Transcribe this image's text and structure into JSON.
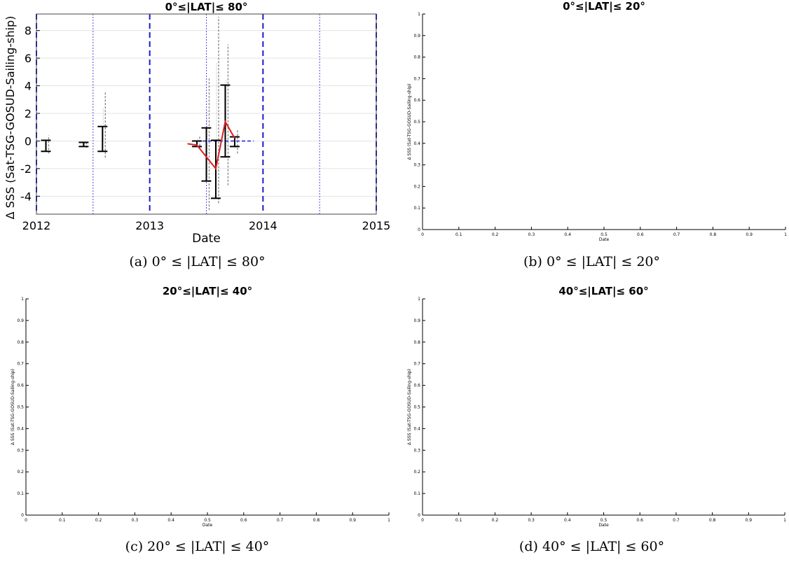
{
  "panels": [
    {
      "id": "a",
      "caption": "(a) 0° ≤ |LAT| ≤ 80°",
      "chart_data": {
        "type": "line",
        "title": "0°≤|LAT|≤ 80°",
        "xlabel": "Date",
        "ylabel": "Δ SSS (Sat-TSG-GOSUD-Sailing-ship)",
        "xlim": [
          "2012-01",
          "2015-01"
        ],
        "ylim": [
          -5.3,
          9.2
        ],
        "x_ticks": [
          "2012",
          "2013",
          "2014",
          "2015"
        ],
        "y_ticks": [
          -4,
          -2,
          0,
          2,
          4,
          6,
          8
        ],
        "grid": true,
        "year_lines": [
          "2012-01",
          "2013-01",
          "2014-01",
          "2015-01"
        ],
        "half_year_lines": [
          "2012-07",
          "2013-07",
          "2014-07"
        ],
        "zero_line": {
          "x_range": [
            "2013-06",
            "2013-12"
          ],
          "y": 0,
          "color": "#1a1adc"
        },
        "error_bars": [
          {
            "x": "2012-02",
            "mean": -0.35,
            "low": -0.75,
            "high": 0.05
          },
          {
            "x": "2012-06",
            "mean": -0.25,
            "low": -0.4,
            "high": -0.1
          },
          {
            "x": "2012-08",
            "mean": 0.1,
            "low": -0.75,
            "high": 1.05
          },
          {
            "x": "2013-06",
            "mean": -0.15,
            "low": -0.4,
            "high": 0.0
          },
          {
            "x": "2013-07",
            "mean": -0.9,
            "low": -2.9,
            "high": 0.95
          },
          {
            "x": "2013-08",
            "mean": -2.0,
            "low": -4.15,
            "high": 0.05
          },
          {
            "x": "2013-09",
            "mean": 1.4,
            "low": -1.15,
            "high": 4.05
          },
          {
            "x": "2013-10",
            "mean": 0.1,
            "low": -0.4,
            "high": 0.3
          }
        ],
        "scatter_spreads": [
          {
            "x": "2012-02",
            "low": -0.9,
            "high": 0.4
          },
          {
            "x": "2012-06",
            "low": -0.5,
            "high": 0.0
          },
          {
            "x": "2012-08",
            "low": -1.2,
            "high": 3.6
          },
          {
            "x": "2013-06",
            "low": -0.6,
            "high": 0.4
          },
          {
            "x": "2013-07",
            "low": -5.0,
            "high": 4.6
          },
          {
            "x": "2013-08",
            "low": -4.5,
            "high": 9.0
          },
          {
            "x": "2013-09",
            "low": -3.2,
            "high": 7.0
          },
          {
            "x": "2013-10",
            "low": -0.9,
            "high": 0.8
          }
        ],
        "mean_line": {
          "color": "#e02020",
          "points": [
            {
              "x": "2013-05",
              "y": -0.2
            },
            {
              "x": "2013-06",
              "y": -0.3
            },
            {
              "x": "2013-08",
              "y": -2.0
            },
            {
              "x": "2013-09",
              "y": 1.4
            },
            {
              "x": "2013-10",
              "y": 0.2
            }
          ]
        }
      }
    },
    {
      "id": "b",
      "caption": "(b) 0° ≤ |LAT| ≤ 20°",
      "chart_data": {
        "type": "line",
        "title": "0°≤|LAT|≤ 20°",
        "xlabel": "Date",
        "ylabel": "Δ SSS (Sat-TSG-GOSUD-Sailing-ship)",
        "xlim": [
          0,
          1
        ],
        "ylim": [
          0,
          1
        ],
        "x_ticks": [
          "0",
          "0.1",
          "0.2",
          "0.3",
          "0.4",
          "0.5",
          "0.6",
          "0.7",
          "0.8",
          "0.9",
          "1"
        ],
        "y_ticks": [
          "0",
          "0.1",
          "0.2",
          "0.3",
          "0.4",
          "0.5",
          "0.6",
          "0.7",
          "0.8",
          "0.9",
          "1"
        ],
        "series": []
      }
    },
    {
      "id": "c",
      "caption": "(c) 20° ≤ |LAT| ≤ 40°",
      "chart_data": {
        "type": "line",
        "title": "20°≤|LAT|≤ 40°",
        "xlabel": "Date",
        "ylabel": "Δ SSS (Sat-TSG-GOSUD-Sailing-ship)",
        "xlim": [
          0,
          1
        ],
        "ylim": [
          0,
          1
        ],
        "x_ticks": [
          "0",
          "0.1",
          "0.2",
          "0.3",
          "0.4",
          "0.5",
          "0.6",
          "0.7",
          "0.8",
          "0.9",
          "1"
        ],
        "y_ticks": [
          "0",
          "0.1",
          "0.2",
          "0.3",
          "0.4",
          "0.5",
          "0.6",
          "0.7",
          "0.8",
          "0.9",
          "1"
        ],
        "series": []
      }
    },
    {
      "id": "d",
      "caption": "(d) 40° ≤ |LAT| ≤ 60°",
      "chart_data": {
        "type": "line",
        "title": "40°≤|LAT|≤ 60°",
        "xlabel": "Date",
        "ylabel": "Δ SSS (Sat-TSG-GOSUD-Sailing-ship)",
        "xlim": [
          0,
          1
        ],
        "ylim": [
          0,
          1
        ],
        "x_ticks": [
          "0",
          "0.1",
          "0.2",
          "0.3",
          "0.4",
          "0.5",
          "0.6",
          "0.7",
          "0.8",
          "0.9",
          "1"
        ],
        "y_ticks": [
          "0",
          "0.1",
          "0.2",
          "0.3",
          "0.4",
          "0.5",
          "0.6",
          "0.7",
          "0.8",
          "0.9",
          "1"
        ],
        "series": []
      }
    }
  ]
}
